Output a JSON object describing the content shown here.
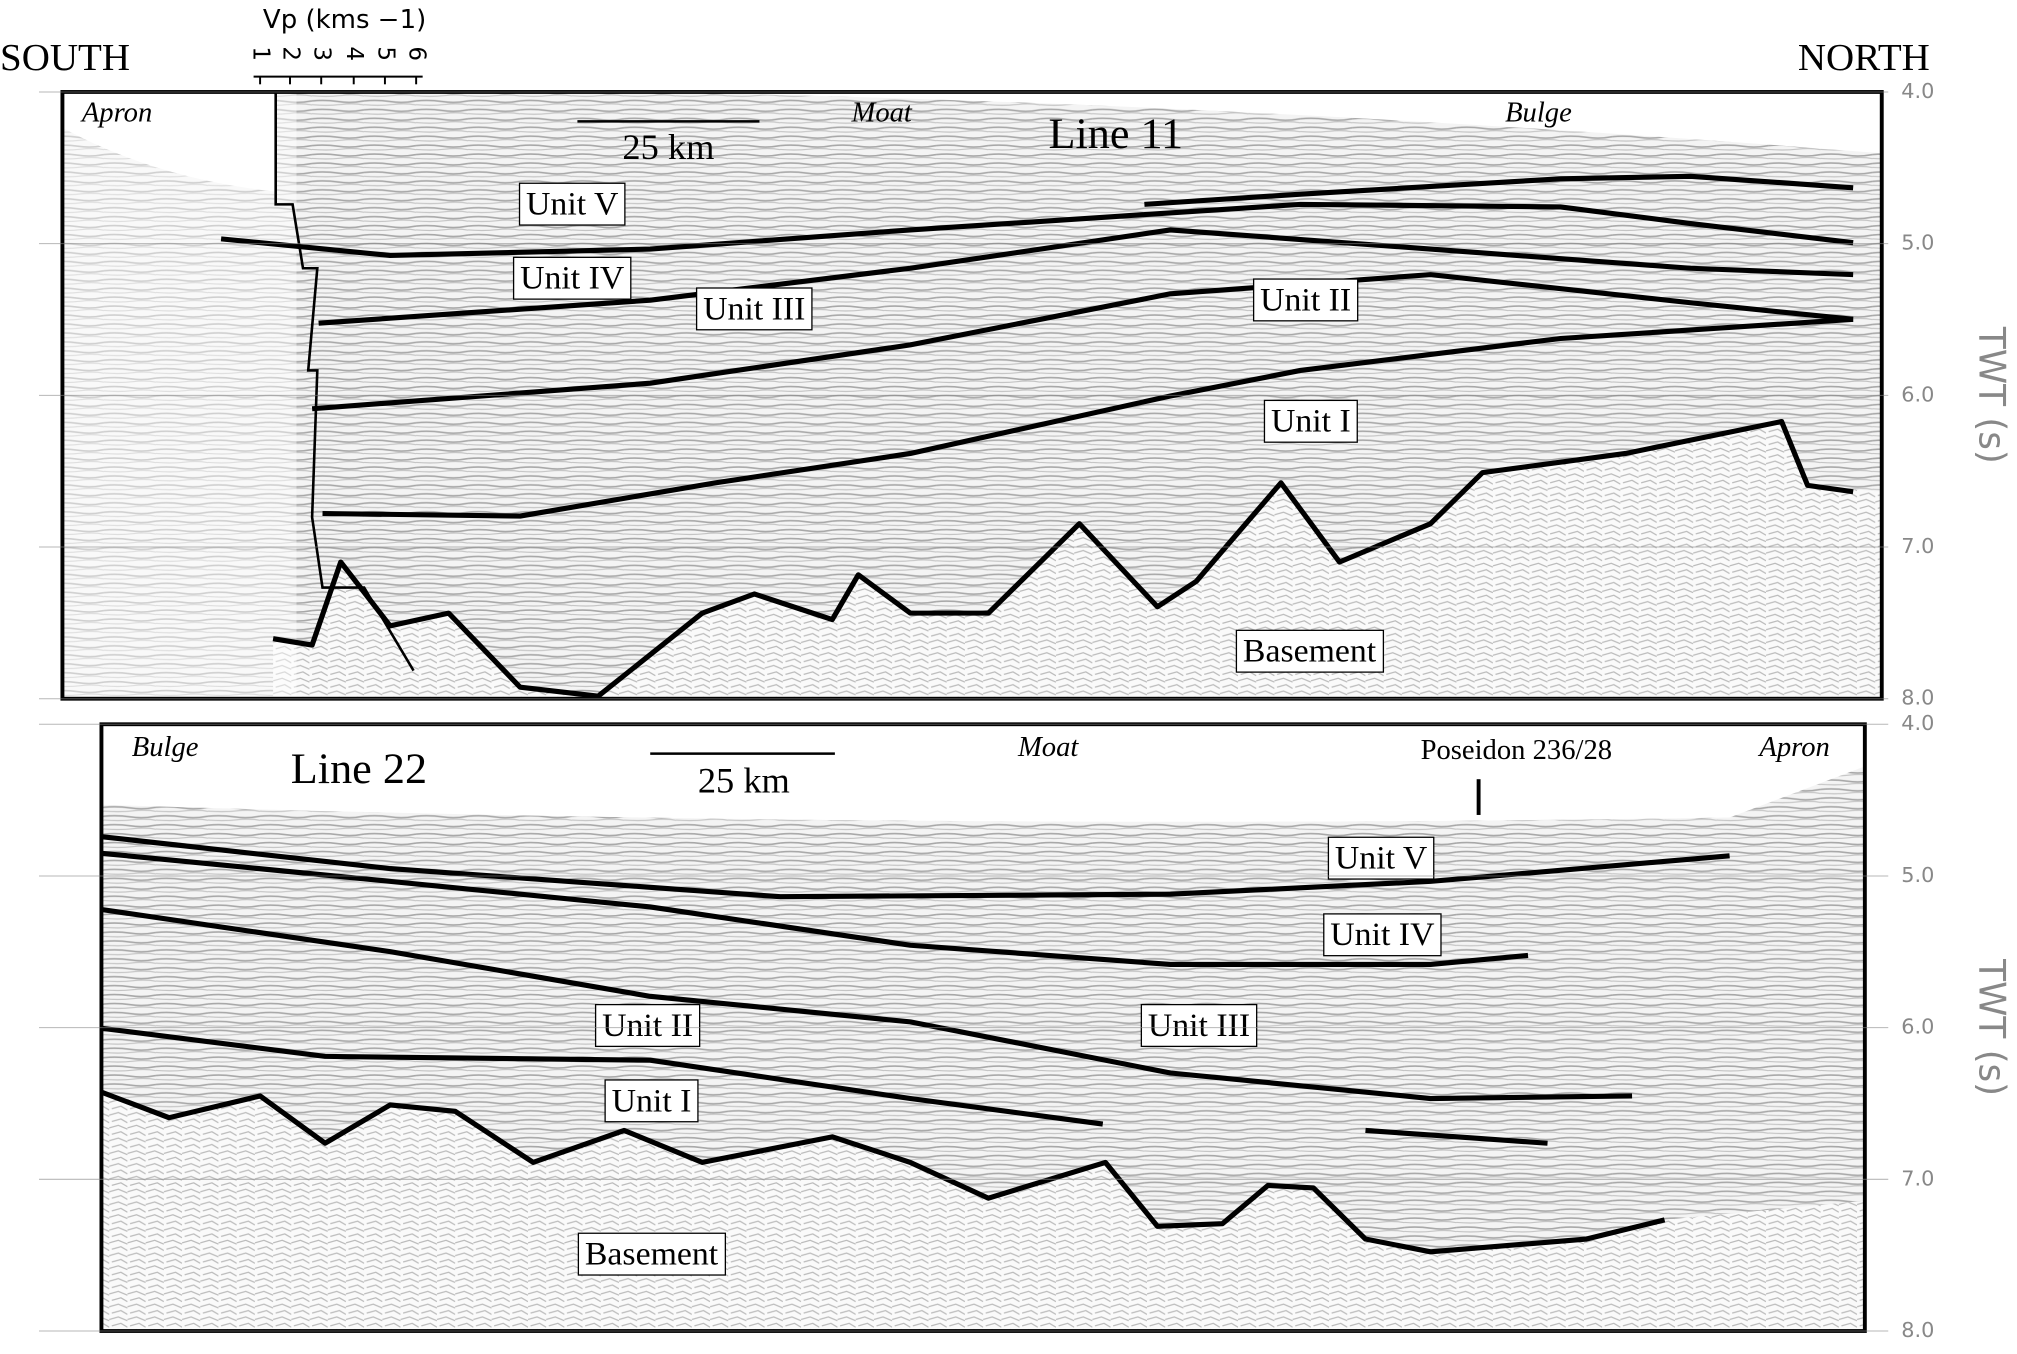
{
  "header": {
    "south": "SOUTH",
    "north": "NORTH",
    "vp_label": "Vp (kms −1)",
    "vp_ticks": [
      "1",
      "2",
      "3",
      "4",
      "5",
      "6"
    ]
  },
  "panels": [
    {
      "title": "Line 11",
      "scale": "25 km",
      "places": [
        "Apron",
        "Moat",
        "Bulge"
      ],
      "units": [
        "Unit V",
        "Unit IV",
        "Unit III",
        "Unit II",
        "Unit I",
        "Basement"
      ],
      "axis_label": "TWT (s)",
      "ticks": [
        "4.0",
        "5.0",
        "6.0",
        "7.0",
        "8.0"
      ]
    },
    {
      "title": "Line 22",
      "scale": "25 km",
      "places": [
        "Bulge",
        "Moat",
        "Apron"
      ],
      "site": "Poseidon 236/28",
      "units": [
        "Unit V",
        "Unit IV",
        "Unit II",
        "Unit III",
        "Unit I",
        "Basement"
      ],
      "axis_label": "TWT (s)",
      "ticks": [
        "4.0",
        "5.0",
        "6.0",
        "7.0",
        "8.0"
      ]
    }
  ]
}
